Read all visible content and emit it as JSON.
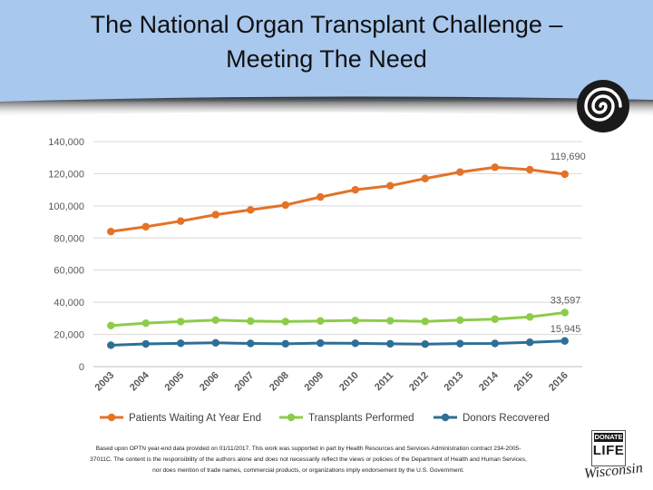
{
  "slide": {
    "title_line1": "The National Organ Transplant Challenge –",
    "title_line2": "Meeting The Need",
    "footnote_line1": "Based upon OPTN year-end data provided on 01/11/2017.  This work was supported in part by Health Resources and Services Administration contract 234-2005-",
    "footnote_line2": "37011C. The content is the responsibility of the authors alone and does not necessarily reflect the views or policies of the Department of Health and Human Services,",
    "footnote_line3": "nor does mention of trade names, commercial products, or organizations imply endorsement by the U.S. Government.",
    "logo": {
      "top": "DONATE",
      "main": "LIFE",
      "state": "Wisconsin"
    }
  },
  "colors": {
    "header": "#a9c8ee",
    "waiting": "#e27329",
    "transplants": "#8dcc4a",
    "donors": "#2e6f96",
    "grid": "#d9d9d9",
    "axis_text": "#595959"
  },
  "chart_data": {
    "type": "line",
    "title": "",
    "xlabel": "",
    "ylabel": "",
    "categories": [
      "2003",
      "2004",
      "2005",
      "2006",
      "2007",
      "2008",
      "2009",
      "2010",
      "2011",
      "2012",
      "2013",
      "2014",
      "2015",
      "2016"
    ],
    "ylim": [
      0,
      140000
    ],
    "yticks": [
      0,
      20000,
      40000,
      60000,
      80000,
      100000,
      120000,
      140000
    ],
    "ytick_labels": [
      "0",
      "20,000",
      "40,000",
      "60,000",
      "80,000",
      "100,000",
      "120,000",
      "140,000"
    ],
    "grid": true,
    "legend_position": "bottom",
    "series": [
      {
        "name": "Patients Waiting At Year End",
        "color": "#e27329",
        "values": [
          84000,
          87000,
          90500,
          94500,
          97500,
          100500,
          105500,
          110000,
          112500,
          117000,
          121000,
          124000,
          122500,
          119690
        ],
        "end_label": "119,690"
      },
      {
        "name": "Transplants Performed",
        "color": "#8dcc4a",
        "values": [
          25500,
          27000,
          28000,
          28900,
          28300,
          28000,
          28400,
          28700,
          28500,
          28100,
          28900,
          29500,
          30900,
          33597
        ],
        "end_label": "33,597"
      },
      {
        "name": "Donors Recovered",
        "color": "#2e6f96",
        "values": [
          13300,
          14100,
          14500,
          14800,
          14400,
          14200,
          14600,
          14500,
          14200,
          14000,
          14300,
          14400,
          15100,
          15945
        ],
        "end_label": "15,945"
      }
    ]
  }
}
